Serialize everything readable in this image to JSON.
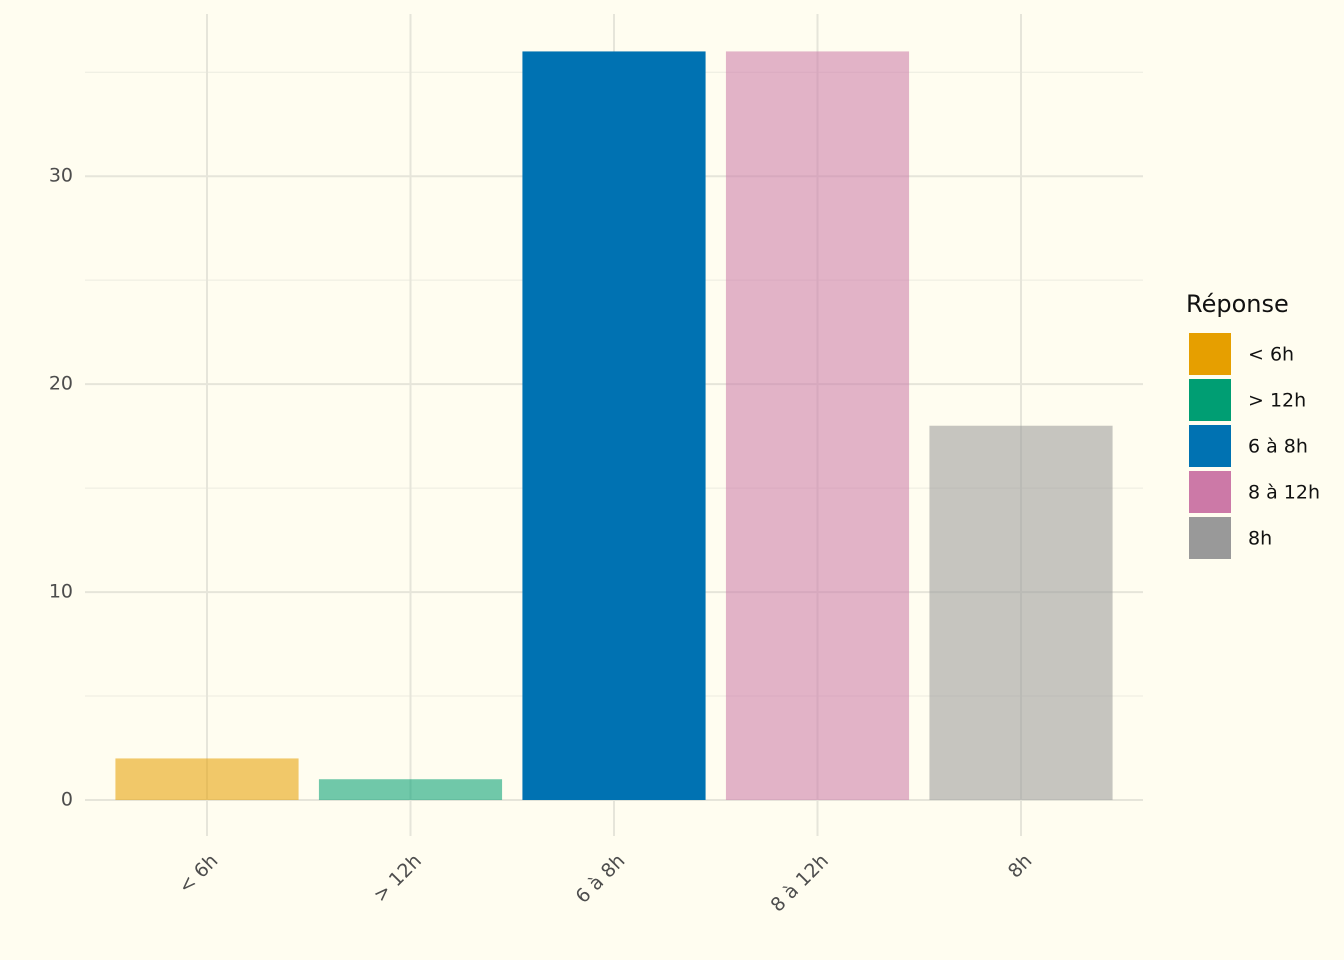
{
  "chart_data": {
    "type": "bar",
    "categories": [
      "< 6h",
      "> 12h",
      "6 à 8h",
      "8 à 12h",
      "8h"
    ],
    "values": [
      2,
      1,
      36,
      36,
      18
    ],
    "colors": [
      "#E69F00",
      "#009E73",
      "#0072B2",
      "#CC79A7",
      "#999999"
    ],
    "opacity": [
      0.56,
      0.56,
      1,
      0.56,
      0.56
    ],
    "ylim": [
      -1.73,
      37.8
    ],
    "yticks": [
      0,
      10,
      20,
      30
    ],
    "minor_yticks": [
      5,
      15,
      25,
      35
    ],
    "grid": true,
    "legend_title": "Réponse",
    "legend_position": "right"
  }
}
